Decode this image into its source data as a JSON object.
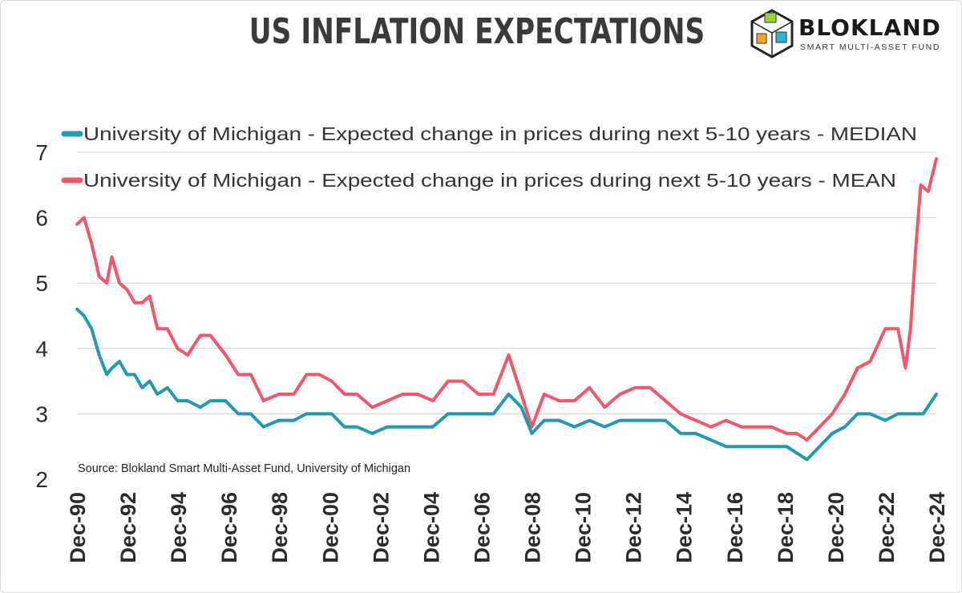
{
  "header": {
    "title": "US INFLATION EXPECTATIONS",
    "logo_word": "BLOKLAND",
    "logo_sub": "SMART MULTI-ASSET FUND"
  },
  "colors": {
    "median": "#2199b5",
    "mean": "#f2566b",
    "grid": "#cfcfcf",
    "text": "#333333"
  },
  "chart_data": {
    "type": "line",
    "title": "US INFLATION EXPECTATIONS",
    "source": "Source: Blokland Smart Multi-Asset Fund, University of Michigan",
    "ylim": [
      2,
      7
    ],
    "y_ticks": [
      2,
      3,
      4,
      5,
      6,
      7
    ],
    "x_range": [
      1990.92,
      2024.92
    ],
    "x_ticks": [
      "Dec-90",
      "Dec-92",
      "Dec-94",
      "Dec-96",
      "Dec-98",
      "Dec-00",
      "Dec-02",
      "Dec-04",
      "Dec-06",
      "Dec-08",
      "Dec-10",
      "Dec-12",
      "Dec-14",
      "Dec-16",
      "Dec-18",
      "Dec-20",
      "Dec-22",
      "Dec-24"
    ],
    "x_tick_years": [
      1990.92,
      1992.92,
      1994.92,
      1996.92,
      1998.92,
      2000.92,
      2002.92,
      2004.92,
      2006.92,
      2008.92,
      2010.92,
      2012.92,
      2014.92,
      2016.92,
      2018.92,
      2020.92,
      2022.92,
      2024.92
    ],
    "grid": true,
    "legend_position": "top-left",
    "series": [
      {
        "name": "University of Michigan - Expected change in prices during next 5-10 years - MEDIAN",
        "color": "#2199b5",
        "x": [
          1990.92,
          1991.2,
          1991.5,
          1991.8,
          1992.1,
          1992.3,
          1992.6,
          1992.9,
          1993.2,
          1993.5,
          1993.8,
          1994.1,
          1994.5,
          1994.9,
          1995.3,
          1995.8,
          1996.2,
          1996.8,
          1997.3,
          1997.8,
          1998.3,
          1998.9,
          1999.5,
          2000.0,
          2000.5,
          2001.0,
          2001.5,
          2002.0,
          2002.6,
          2003.2,
          2003.8,
          2004.4,
          2005.0,
          2005.6,
          2006.2,
          2006.8,
          2007.4,
          2008.0,
          2008.5,
          2008.92,
          2009.4,
          2010.0,
          2010.6,
          2011.2,
          2011.8,
          2012.4,
          2013.0,
          2013.6,
          2014.2,
          2014.8,
          2015.4,
          2016.0,
          2016.6,
          2017.2,
          2017.8,
          2018.4,
          2019.0,
          2019.4,
          2019.8,
          2020.3,
          2020.8,
          2021.3,
          2021.8,
          2022.3,
          2022.9,
          2023.4,
          2023.9,
          2024.4,
          2024.92
        ],
        "values": [
          4.6,
          4.5,
          4.3,
          3.9,
          3.6,
          3.7,
          3.8,
          3.6,
          3.6,
          3.4,
          3.5,
          3.3,
          3.4,
          3.2,
          3.2,
          3.1,
          3.2,
          3.2,
          3.0,
          3.0,
          2.8,
          2.9,
          2.9,
          3.0,
          3.0,
          3.0,
          2.8,
          2.8,
          2.7,
          2.8,
          2.8,
          2.8,
          2.8,
          3.0,
          3.0,
          3.0,
          3.0,
          3.3,
          3.1,
          2.7,
          2.9,
          2.9,
          2.8,
          2.9,
          2.8,
          2.9,
          2.9,
          2.9,
          2.9,
          2.7,
          2.7,
          2.6,
          2.5,
          2.5,
          2.5,
          2.5,
          2.5,
          2.4,
          2.3,
          2.5,
          2.7,
          2.8,
          3.0,
          3.0,
          2.9,
          3.0,
          3.0,
          3.0,
          3.3
        ]
      },
      {
        "name": "University of Michigan - Expected change in prices during next 5-10 years - MEAN",
        "color": "#f2566b",
        "x": [
          1990.92,
          1991.2,
          1991.5,
          1991.8,
          1992.1,
          1992.3,
          1992.6,
          1992.9,
          1993.2,
          1993.5,
          1993.8,
          1994.1,
          1994.5,
          1994.9,
          1995.3,
          1995.8,
          1996.2,
          1996.8,
          1997.3,
          1997.8,
          1998.3,
          1998.9,
          1999.5,
          2000.0,
          2000.5,
          2001.0,
          2001.5,
          2002.0,
          2002.6,
          2003.2,
          2003.8,
          2004.4,
          2005.0,
          2005.6,
          2006.2,
          2006.8,
          2007.4,
          2008.0,
          2008.5,
          2008.92,
          2009.4,
          2010.0,
          2010.6,
          2011.2,
          2011.8,
          2012.4,
          2013.0,
          2013.6,
          2014.2,
          2014.8,
          2015.4,
          2016.0,
          2016.6,
          2017.2,
          2017.8,
          2018.4,
          2019.0,
          2019.4,
          2019.8,
          2020.3,
          2020.8,
          2021.3,
          2021.8,
          2022.3,
          2022.9,
          2023.4,
          2023.7,
          2023.9,
          2024.1,
          2024.3,
          2024.6,
          2024.92
        ],
        "values": [
          5.9,
          6.0,
          5.6,
          5.1,
          5.0,
          5.4,
          5.0,
          4.9,
          4.7,
          4.7,
          4.8,
          4.3,
          4.3,
          4.0,
          3.9,
          4.2,
          4.2,
          3.9,
          3.6,
          3.6,
          3.2,
          3.3,
          3.3,
          3.6,
          3.6,
          3.5,
          3.3,
          3.3,
          3.1,
          3.2,
          3.3,
          3.3,
          3.2,
          3.5,
          3.5,
          3.3,
          3.3,
          3.9,
          3.3,
          2.8,
          3.3,
          3.2,
          3.2,
          3.4,
          3.1,
          3.3,
          3.4,
          3.4,
          3.2,
          3.0,
          2.9,
          2.8,
          2.9,
          2.8,
          2.8,
          2.8,
          2.7,
          2.7,
          2.6,
          2.8,
          3.0,
          3.3,
          3.7,
          3.8,
          4.3,
          4.3,
          3.7,
          4.3,
          5.5,
          6.5,
          6.4,
          6.9
        ]
      }
    ]
  }
}
